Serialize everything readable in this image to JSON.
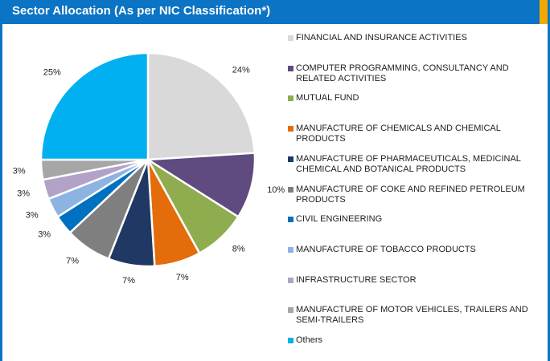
{
  "chart_data": {
    "type": "pie",
    "title": "Sector Allocation (As per NIC Classification*)",
    "categories": [
      "FINANCIAL AND INSURANCE ACTIVITIES",
      "COMPUTER PROGRAMMING, CONSULTANCY AND RELATED ACTIVITIES",
      "MUTUAL FUND",
      "MANUFACTURE OF CHEMICALS AND CHEMICAL PRODUCTS",
      "MANUFACTURE OF PHARMACEUTICALS, MEDICINAL CHEMICAL AND BOTANICAL PRODUCTS",
      "MANUFACTURE OF COKE AND REFINED PETROLEUM PRODUCTS",
      "CIVIL ENGINEERING",
      "MANUFACTURE OF TOBACCO PRODUCTS",
      "INFRASTRUCTURE SECTOR",
      "MANUFACTURE OF MOTOR VEHICLES, TRAILERS AND SEMI-TRAILERS",
      "Others"
    ],
    "values": [
      24,
      10,
      8,
      7,
      7,
      7,
      3,
      3,
      3,
      3,
      25
    ],
    "value_labels": [
      "24%",
      "10%",
      "8%",
      "7%",
      "7%",
      "7%",
      "3%",
      "3%",
      "3%",
      "3%",
      "25%"
    ],
    "colors": [
      "#d9d9d9",
      "#5f4b7f",
      "#8fac4f",
      "#e46c0a",
      "#1f3864",
      "#7f7f7f",
      "#0070c0",
      "#8db3e2",
      "#b3a2c7",
      "#a6a6a6",
      "#00b0f0"
    ]
  }
}
